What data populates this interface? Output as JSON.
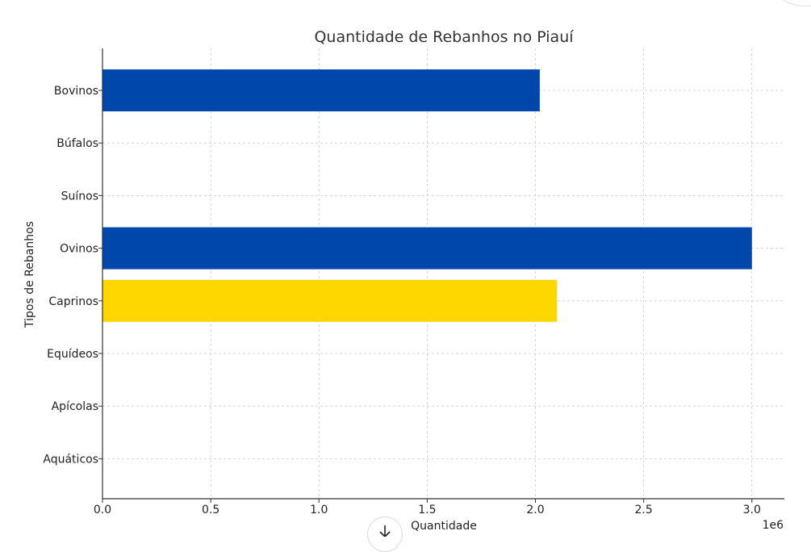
{
  "chart_data": {
    "type": "bar",
    "orientation": "horizontal",
    "title": "Quantidade de Rebanhos no Piauí",
    "xlabel": "Quantidade",
    "ylabel": "Tipos de Rebanhos",
    "x_scale_label": "1e6",
    "xlim": [
      0,
      3150000
    ],
    "x_ticks": [
      0,
      500000,
      1000000,
      1500000,
      2000000,
      2500000,
      3000000
    ],
    "x_tick_labels": [
      "0.0",
      "0.5",
      "1.0",
      "1.5",
      "2.0",
      "2.5",
      "3.0"
    ],
    "grid": true,
    "categories": [
      "Bovinos",
      "Búfalos",
      "Suínos",
      "Ovinos",
      "Caprinos",
      "Equídeos",
      "Apícolas",
      "Aquáticos"
    ],
    "values": [
      2020000,
      0,
      0,
      3000000,
      2100000,
      0,
      0,
      0
    ],
    "bar_colors": [
      "#0047ab",
      "#0047ab",
      "#0047ab",
      "#0047ab",
      "#ffd700",
      "#0047ab",
      "#0047ab",
      "#0047ab"
    ]
  },
  "ui": {
    "download_icon": "download-arrow-icon"
  }
}
